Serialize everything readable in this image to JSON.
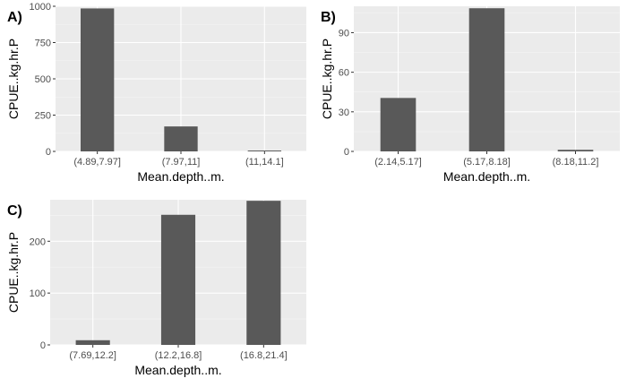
{
  "colors": {
    "panel_background": "#EBEBEB",
    "grid_major": "#FFFFFF",
    "grid_minor": "#F5F5F5",
    "bar_fill": "#595959",
    "tick_text": "#4D4D4D",
    "axis_text": "#000000"
  },
  "chart_data": [
    {
      "tag": "A)",
      "type": "bar",
      "categories": [
        "(4.89,7.97]",
        "(7.97,11]",
        "(11,14.1]"
      ],
      "values": [
        985,
        172,
        6
      ],
      "xlabel": "Mean.depth..m.",
      "ylabel": "CPUE..kg.hr.P",
      "ylim": [
        0,
        1000
      ],
      "yticks": [
        0,
        250,
        500,
        750,
        1000
      ],
      "ytick_labels": [
        "0",
        "250",
        "500",
        "750",
        "1000"
      ],
      "grid": true,
      "legend": "none"
    },
    {
      "tag": "B)",
      "type": "bar",
      "categories": [
        "(2.14,5.17]",
        "(5.17,8.18]",
        "(8.18,11.2]"
      ],
      "values": [
        40.5,
        108.5,
        1.2
      ],
      "xlabel": "Mean.depth..m.",
      "ylabel": "CPUE..kg.hr.P",
      "ylim": [
        0,
        110
      ],
      "yticks": [
        0,
        30,
        60,
        90
      ],
      "ytick_labels": [
        "0",
        "30",
        "60",
        "90"
      ],
      "grid": true,
      "legend": "none"
    },
    {
      "tag": "C)",
      "type": "bar",
      "categories": [
        "(7.69,12.2]",
        "(12.2,16.8]",
        "(16.8,21.4]"
      ],
      "values": [
        9,
        251,
        278
      ],
      "xlabel": "Mean.depth..m.",
      "ylabel": "CPUE..kg.hr.P",
      "ylim": [
        0,
        280
      ],
      "yticks": [
        0,
        100,
        200
      ],
      "ytick_labels": [
        "0",
        "100",
        "200"
      ],
      "grid": true,
      "legend": "none"
    }
  ]
}
